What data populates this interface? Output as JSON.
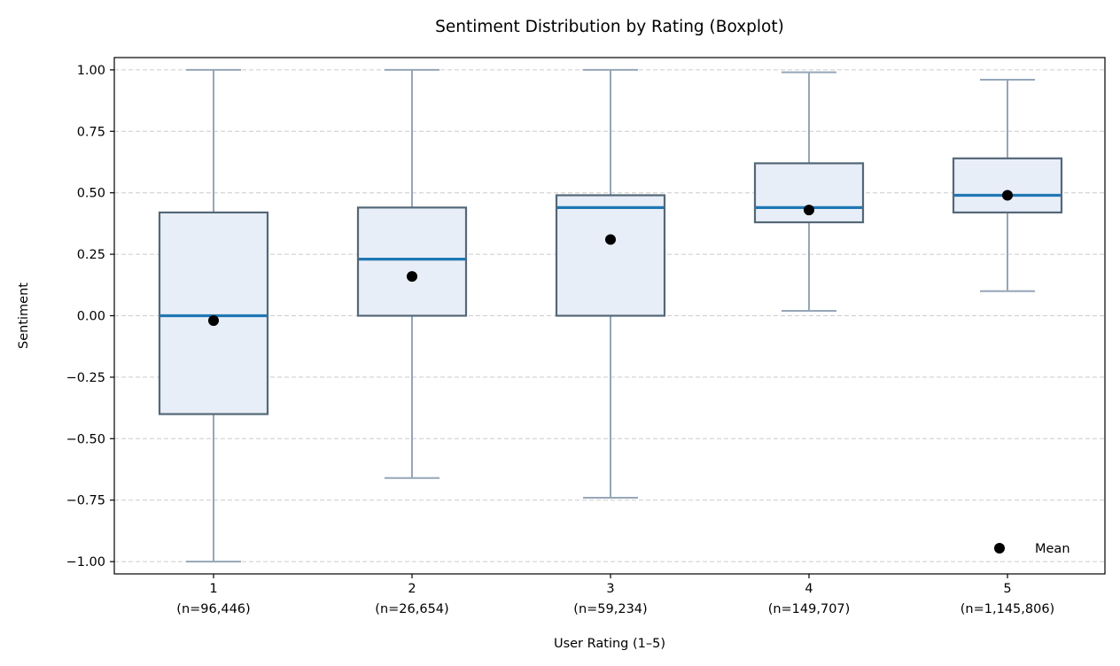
{
  "chart_data": {
    "type": "boxplot",
    "title": "Sentiment Distribution by Rating (Boxplot)",
    "xlabel": "User Rating (1–5)",
    "ylabel": "Sentiment",
    "ylim": [
      -1.05,
      1.05
    ],
    "yticks": [
      1.0,
      0.75,
      0.5,
      0.25,
      0.0,
      -0.25,
      -0.5,
      -0.75,
      -1.0
    ],
    "ytick_labels": [
      "1.00",
      "0.75",
      "0.50",
      "0.25",
      "0.00",
      "−0.25",
      "−0.50",
      "−0.75",
      "−1.00"
    ],
    "grid": "y-dashed",
    "legend": {
      "position": "bottom-right",
      "entries": [
        "Mean"
      ]
    },
    "colors": {
      "box_fill": "#e8eef7",
      "box_edge": "#546878",
      "median": "#1f77b4",
      "whisker": "#96a6b8",
      "mean_marker": "#000000",
      "grid": "#cccccc"
    },
    "categories": [
      {
        "label": "1",
        "n_label": "(n=96,446)",
        "whisker_low": -1.0,
        "q1": -0.4,
        "median": 0.0,
        "q3": 0.42,
        "whisker_high": 1.0,
        "mean": -0.02
      },
      {
        "label": "2",
        "n_label": "(n=26,654)",
        "whisker_low": -0.66,
        "q1": 0.0,
        "median": 0.23,
        "q3": 0.44,
        "whisker_high": 1.0,
        "mean": 0.16
      },
      {
        "label": "3",
        "n_label": "(n=59,234)",
        "whisker_low": -0.74,
        "q1": 0.0,
        "median": 0.44,
        "q3": 0.49,
        "whisker_high": 1.0,
        "mean": 0.31
      },
      {
        "label": "4",
        "n_label": "(n=149,707)",
        "whisker_low": 0.02,
        "q1": 0.38,
        "median": 0.44,
        "q3": 0.62,
        "whisker_high": 0.99,
        "mean": 0.43
      },
      {
        "label": "5",
        "n_label": "(n=1,145,806)",
        "whisker_low": 0.1,
        "q1": 0.42,
        "median": 0.49,
        "q3": 0.64,
        "whisker_high": 0.96,
        "mean": 0.49
      }
    ]
  }
}
